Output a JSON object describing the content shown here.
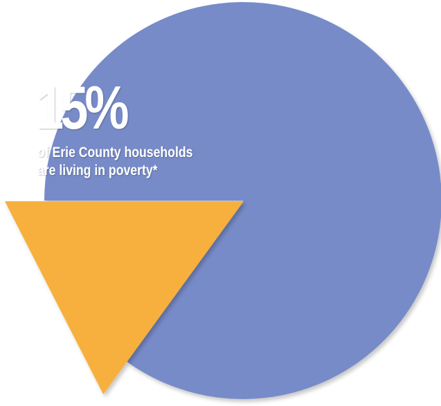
{
  "chart_data": {
    "type": "pie",
    "categories": [
      "",
      ""
    ],
    "values": [
      15,
      85
    ],
    "colors": [
      "#F7B03C",
      "#778BC8"
    ],
    "annotation": {
      "value": "15%",
      "line1": "of Erie County households",
      "line2": "are living in poverty*"
    }
  }
}
